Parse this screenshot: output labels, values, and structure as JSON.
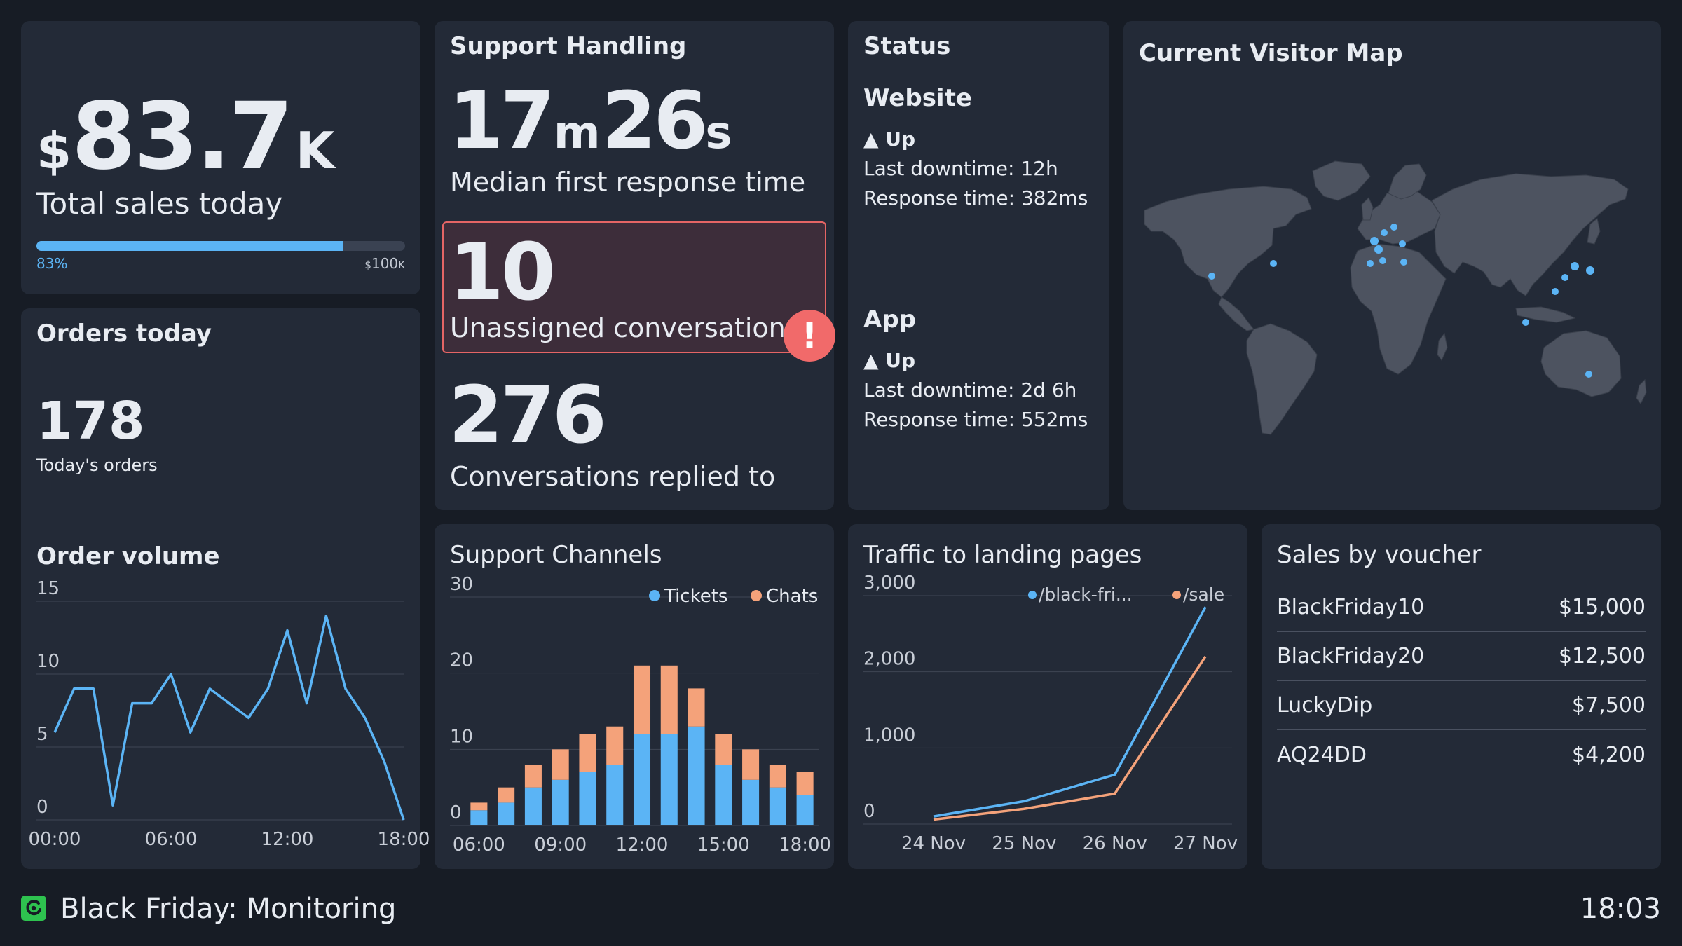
{
  "sales": {
    "currency": "$",
    "amount": "83.7",
    "unit": "K",
    "label": "Total sales today",
    "progress_percent": 83,
    "progress_label": "83%",
    "target_currency": "$",
    "target_amount": "100",
    "target_unit": "K",
    "bar_color": "#5bb4f5"
  },
  "support": {
    "title": "Support Handling",
    "minutes": "17",
    "minutes_unit": "m",
    "seconds": "26",
    "seconds_unit": "s",
    "response_label": "Median first response time",
    "unassigned_count": "10",
    "unassigned_label": "Unassigned conversations",
    "alert_glyph": "!",
    "replied_count": "276",
    "replied_label": "Conversations replied to",
    "alert_color": "#f16a6a"
  },
  "status": {
    "title": "Status",
    "website": {
      "name": "Website",
      "state": "▲ Up",
      "downtime": "Last downtime: 12h",
      "response": "Response time: 382ms"
    },
    "app": {
      "name": "App",
      "state": "▲ Up",
      "downtime": "Last downtime: 2d 6h",
      "response": "Response time: 552ms"
    }
  },
  "map": {
    "title": "Current Visitor Map"
  },
  "orders": {
    "title": "Orders today",
    "count": "178",
    "count_label": "Today's orders"
  },
  "order_volume": {
    "title": "Order volume"
  },
  "support_channels": {
    "title": "Support Channels"
  },
  "traffic": {
    "title": "Traffic to landing pages"
  },
  "vouchers": {
    "title": "Sales by voucher",
    "rows": [
      {
        "name": "BlackFriday10",
        "value": "$15,000"
      },
      {
        "name": "BlackFriday20",
        "value": "$12,500"
      },
      {
        "name": "LuckyDip",
        "value": "$7,500"
      },
      {
        "name": "AQ24DD",
        "value": "$4,200"
      }
    ]
  },
  "footer": {
    "title": "Black Friday: Monitoring",
    "time": "18:03",
    "logo_color": "#2ec24f"
  },
  "chart_data": [
    {
      "type": "line",
      "title": "Order volume",
      "xlabel": "",
      "ylabel": "",
      "x_ticks": [
        "00:00",
        "06:00",
        "12:00",
        "18:00"
      ],
      "y_ticks": [
        "0",
        "5",
        "10",
        "15"
      ],
      "ylim": [
        0,
        15
      ],
      "xlim": [
        0,
        18
      ],
      "x": [
        0,
        1,
        2,
        3,
        4,
        5,
        6,
        7,
        8,
        9,
        10,
        11,
        12,
        13,
        14,
        15,
        16,
        17,
        18
      ],
      "values": [
        6,
        9,
        9,
        1,
        8,
        8,
        10,
        6,
        9,
        8,
        7,
        9,
        13,
        8,
        14,
        9,
        7,
        4,
        0
      ],
      "color": "#5bb4f5",
      "grid": true
    },
    {
      "type": "bar",
      "stacked": true,
      "title": "Support Channels",
      "categories": [
        "06:00",
        "07:00",
        "08:00",
        "09:00",
        "10:00",
        "11:00",
        "12:00",
        "13:00",
        "14:00",
        "15:00",
        "16:00",
        "17:00",
        "18:00"
      ],
      "x_ticks": [
        "06:00",
        "09:00",
        "12:00",
        "15:00",
        "18:00"
      ],
      "y_ticks": [
        "0",
        "10",
        "20",
        "30"
      ],
      "ylim": [
        0,
        30
      ],
      "series": [
        {
          "name": "Tickets",
          "color": "#5bb4f5",
          "values": [
            2,
            3,
            5,
            6,
            7,
            8,
            12,
            12,
            13,
            8,
            6,
            5,
            4
          ]
        },
        {
          "name": "Chats",
          "color": "#f4a27a",
          "values": [
            1,
            2,
            3,
            4,
            5,
            5,
            9,
            9,
            5,
            4,
            4,
            3,
            3
          ]
        }
      ],
      "legend": "top-right",
      "grid": true
    },
    {
      "type": "line",
      "title": "Traffic to landing pages",
      "categories": [
        "24 Nov",
        "25 Nov",
        "26 Nov",
        "27 Nov"
      ],
      "y_ticks": [
        "0",
        "1,000",
        "2,000",
        "3,000"
      ],
      "ylim": [
        0,
        3000
      ],
      "series": [
        {
          "name": "/black-fri...",
          "color": "#5bb4f5",
          "values": [
            100,
            300,
            650,
            2850
          ]
        },
        {
          "name": "/sale",
          "color": "#f4a27a",
          "values": [
            60,
            200,
            400,
            2200
          ]
        }
      ],
      "legend": "top-right",
      "grid": true
    }
  ]
}
